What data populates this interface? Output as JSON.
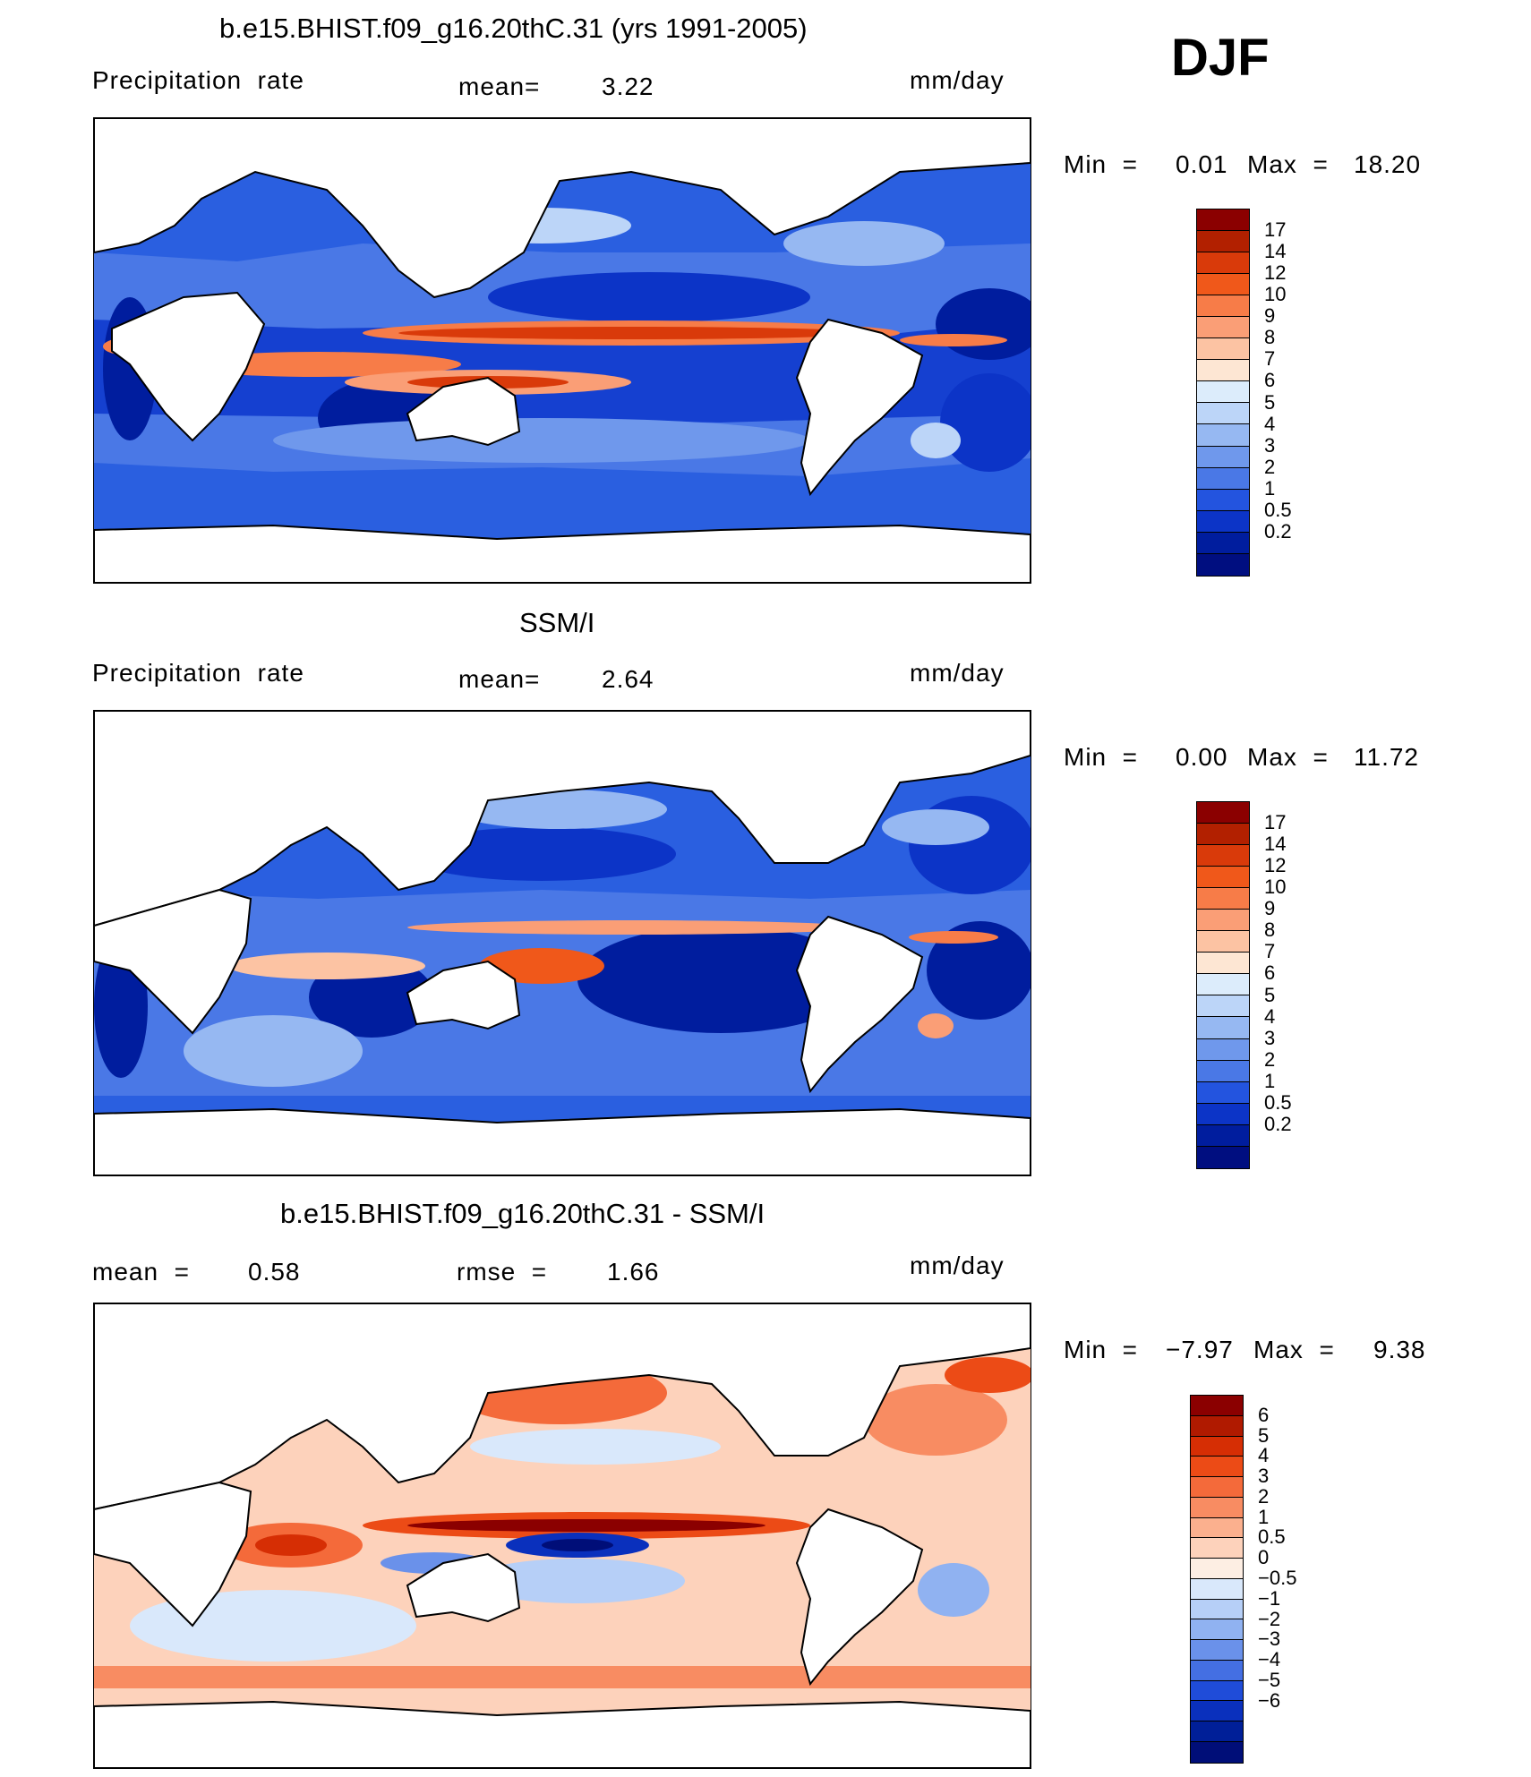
{
  "season": "DJF",
  "panels": [
    {
      "title": "b.e15.BHIST.f09_g16.20thC.31 (yrs 1991-2005)",
      "variable": "Precipitation  rate",
      "stat1": "mean=",
      "stat1_value": "3.22",
      "stat2": "",
      "stat2_value": "",
      "units": "mm/day",
      "min_label": "Min  =",
      "min_value": "0.01",
      "max_label": "Max  =",
      "max_value": "18.20",
      "colorbar": {
        "colors": [
          "#8b0000",
          "#b22000",
          "#d93a0a",
          "#f0581a",
          "#f77c48",
          "#fa9e76",
          "#fcc3a3",
          "#fde6d3",
          "#dcecfb",
          "#bcd5f8",
          "#96b8f2",
          "#6f98ec",
          "#4a78e6",
          "#2354df",
          "#0c34c7",
          "#001d9e",
          "#000e80"
        ],
        "labels": [
          "17",
          "14",
          "12",
          "10",
          "9",
          "8",
          "7",
          "6",
          "5",
          "4",
          "3",
          "2",
          "1",
          "0.5",
          "0.2"
        ]
      }
    },
    {
      "title": "SSM/I",
      "variable": "Precipitation  rate",
      "stat1": "mean=",
      "stat1_value": "2.64",
      "stat2": "",
      "stat2_value": "",
      "units": "mm/day",
      "min_label": "Min  =",
      "min_value": "0.00",
      "max_label": "Max  =",
      "max_value": "11.72",
      "colorbar": {
        "colors": [
          "#8b0000",
          "#b22000",
          "#d93a0a",
          "#f0581a",
          "#f77c48",
          "#fa9e76",
          "#fcc3a3",
          "#fde6d3",
          "#dcecfb",
          "#bcd5f8",
          "#96b8f2",
          "#6f98ec",
          "#4a78e6",
          "#2354df",
          "#0c34c7",
          "#001d9e",
          "#000e80"
        ],
        "labels": [
          "17",
          "14",
          "12",
          "10",
          "9",
          "8",
          "7",
          "6",
          "5",
          "4",
          "3",
          "2",
          "1",
          "0.5",
          "0.2"
        ]
      }
    },
    {
      "title": "b.e15.BHIST.f09_g16.20thC.31 - SSM/I",
      "variable": "",
      "stat1": "mean  =",
      "stat1_value": "0.58",
      "stat2": "rmse  =",
      "stat2_value": "1.66",
      "units": "mm/day",
      "min_label": "Min  =",
      "min_value": "−7.97",
      "max_label": "Max  =",
      "max_value": "9.38",
      "colorbar": {
        "colors": [
          "#8b0000",
          "#b01a00",
          "#d62e04",
          "#ec4b16",
          "#f46a3a",
          "#f88c62",
          "#fbb08e",
          "#fdd2bb",
          "#fdeee3",
          "#d9e8fb",
          "#b6cff7",
          "#90b2f1",
          "#6a91ea",
          "#446fe3",
          "#1f4cd9",
          "#0a30bd",
          "#001f98",
          "#000e78"
        ],
        "labels": [
          "6",
          "5",
          "4",
          "3",
          "2",
          "1",
          "0.5",
          "0",
          "−0.5",
          "−1",
          "−2",
          "−3",
          "−4",
          "−5",
          "−6"
        ]
      }
    }
  ]
}
